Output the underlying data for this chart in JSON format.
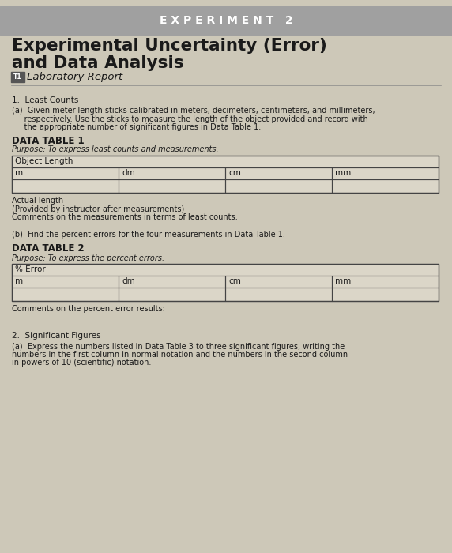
{
  "page_bg": "#cdc8b8",
  "header_bg": "#a0a0a0",
  "header_text": "E X P E R I M E N T   2",
  "header_text_color": "#ffffff",
  "title_line1": "Experimental Uncertainty (Error)",
  "title_line2": "and Data Analysis",
  "title_color": "#1a1a1a",
  "lab_report_icon": "T1",
  "lab_report_text": "Laboratory Report",
  "section1_title": "1.  Least Counts",
  "section1a_label": "(a)  Given meter-length sticks calibrated in meters, decimeters, centimeters, and millimeters,",
  "section1a_line2": "     respectively. Use the sticks to measure the length of the object provided and record with",
  "section1a_line3": "     the appropriate number of significant figures in Data Table 1.",
  "datatable1_title": "DATA TABLE 1",
  "datatable1_purpose": "Purpose: To express least counts and measurements.",
  "datatable1_header": "Object Length",
  "datatable1_cols": [
    "m",
    "dm",
    "cm",
    "mm"
  ],
  "actual_length_text": "Actual length _______________",
  "provided_text": "(Provided by instructor after measurements)",
  "comments1_text": "Comments on the measurements in terms of least counts:",
  "section1b_text": "    (b)  Find the percent errors for the four measurements in Data Table 1.",
  "datatable2_title": "DATA TABLE 2",
  "datatable2_purpose": "Purpose: To express the percent errors.",
  "datatable2_header": "% Error",
  "datatable2_cols": [
    "m",
    "dm",
    "cm",
    "mm"
  ],
  "comments2_text": "Comments on the percent error results:",
  "section2_title": "2.  Significant Figures",
  "section2a_line1": "    (a)  Express the numbers listed in Data Table 3 to three significant figures, writing the",
  "section2a_line2": "          numbers in the first column in normal notation and the numbers in the second column",
  "section2a_line3": "          in powers of 10 (scientific) notation.",
  "table_border_color": "#444444",
  "table_bg": "#dbd6c8",
  "content_text_color": "#1a1a1a"
}
